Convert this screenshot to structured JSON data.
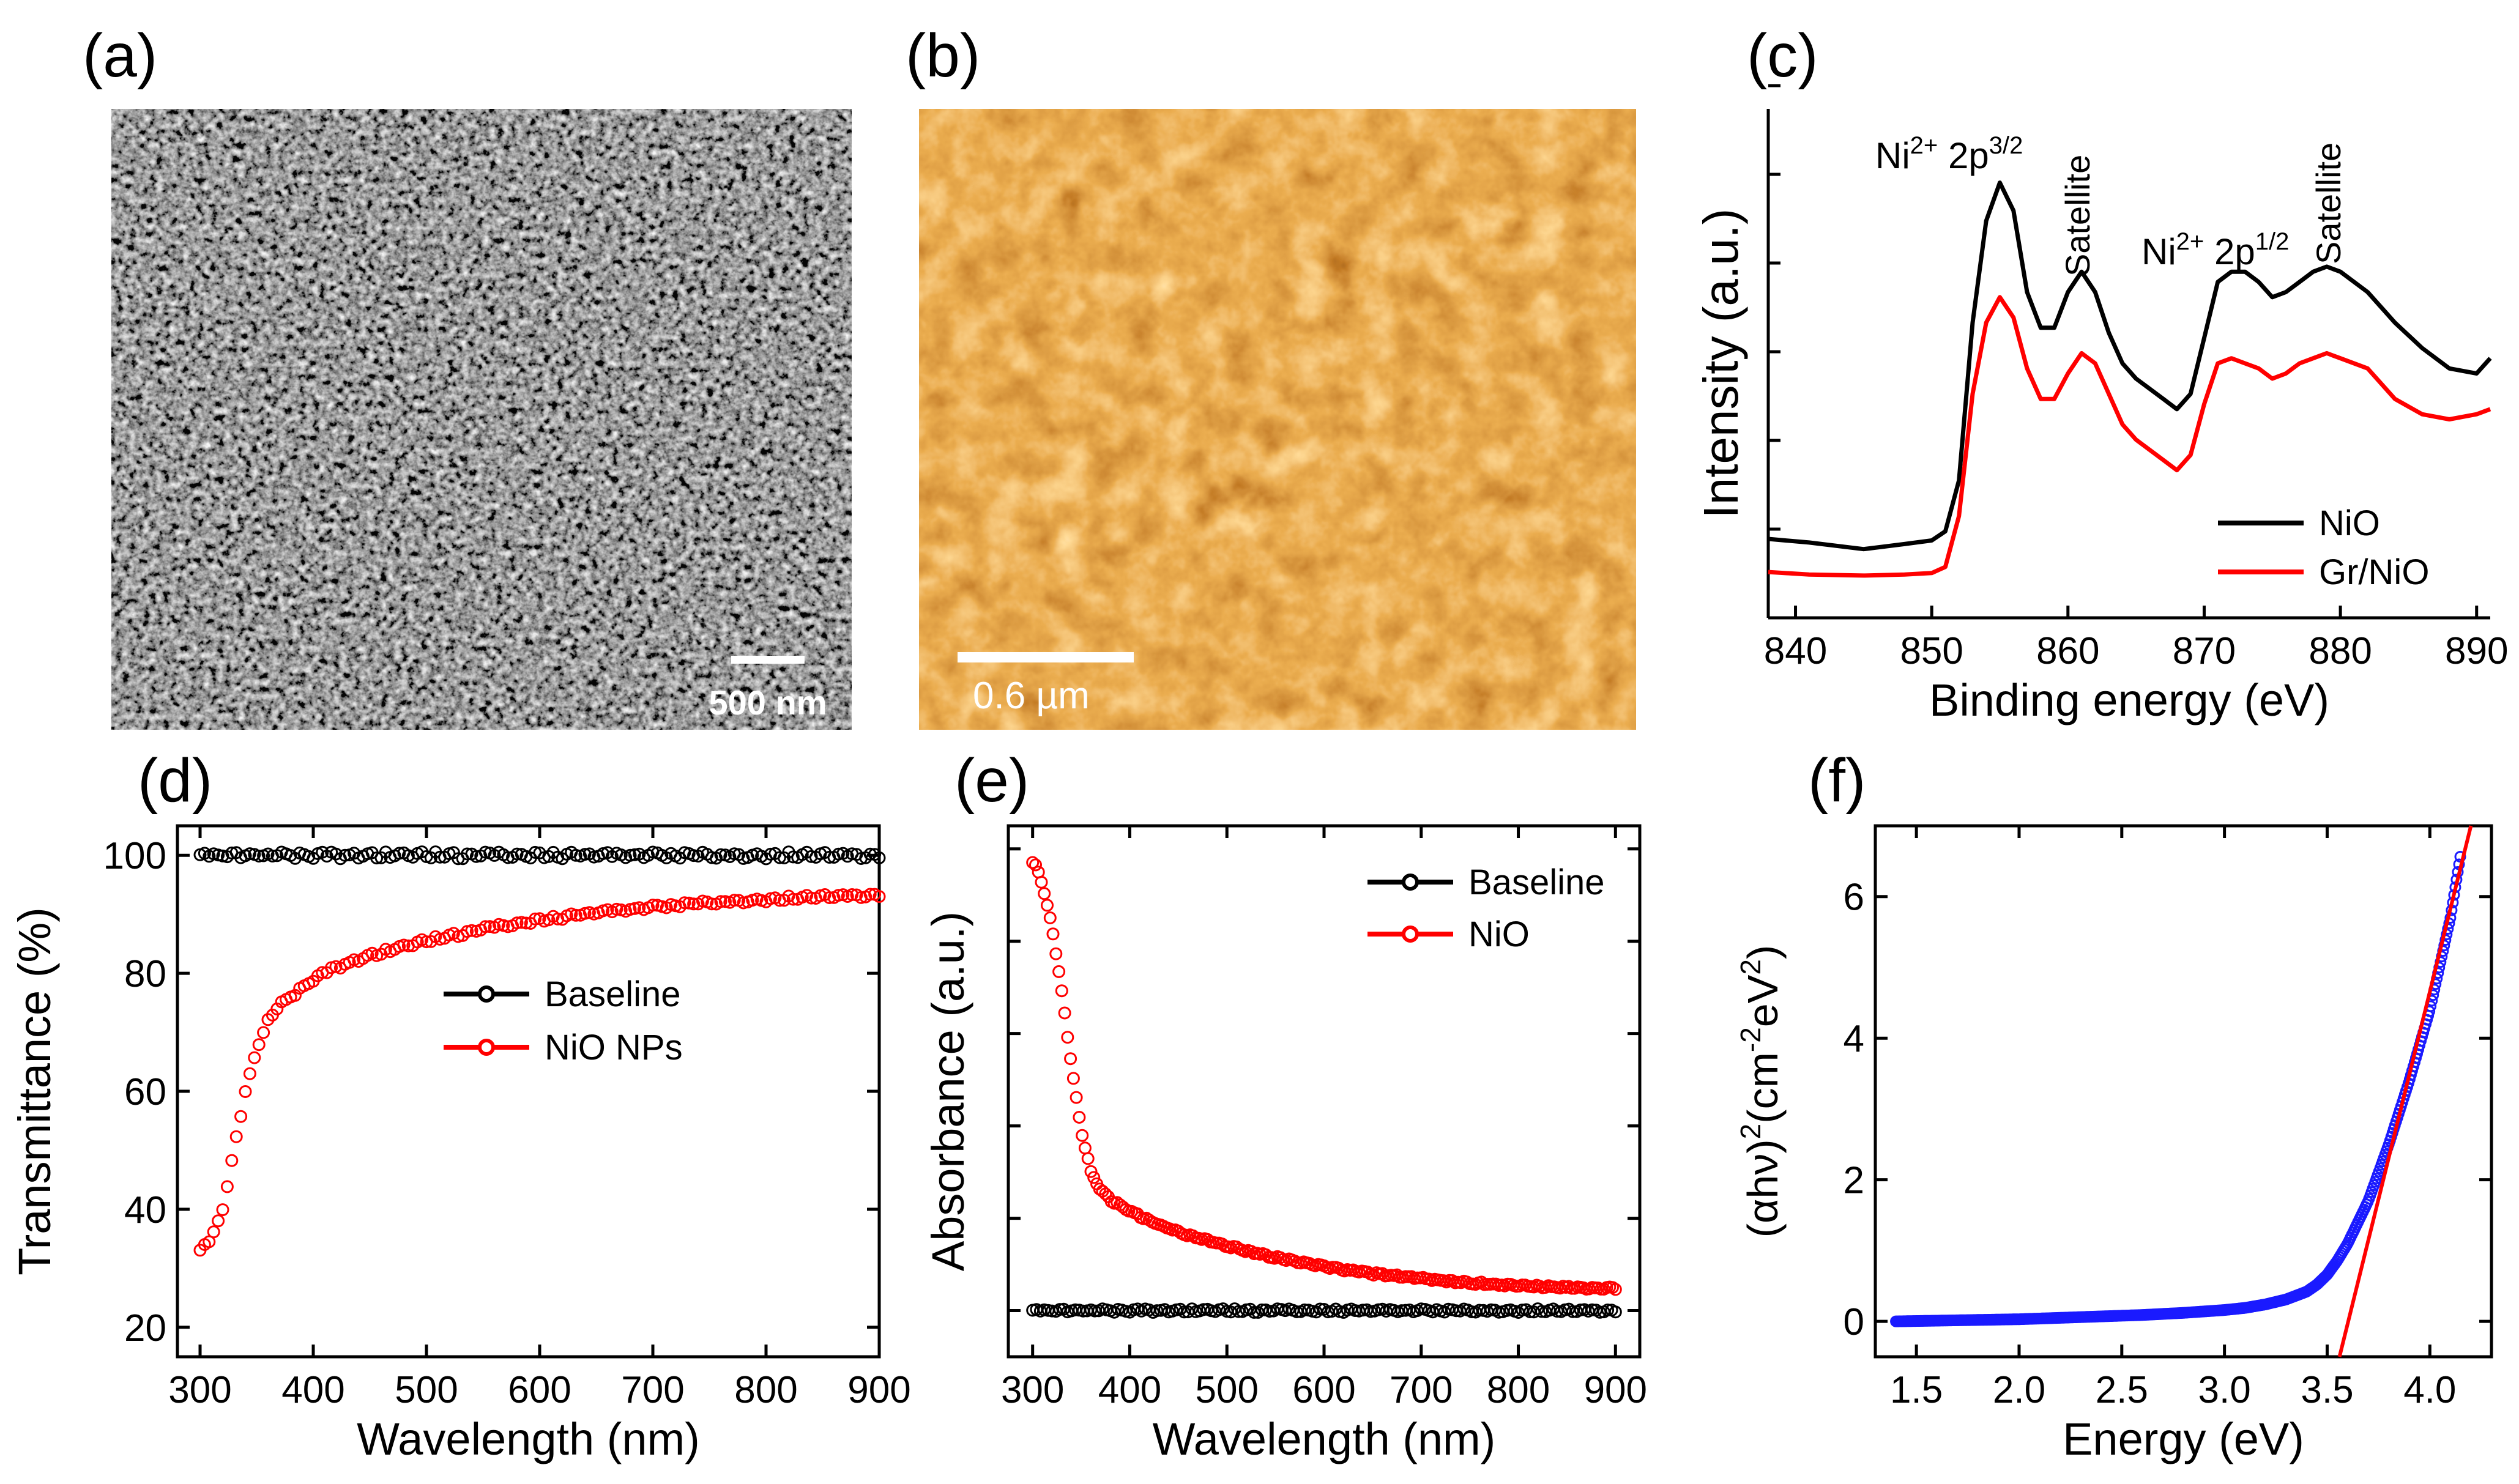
{
  "panels": {
    "a": {
      "label": "(a)",
      "scale_bar": "500 nm",
      "description": "SEM micrograph"
    },
    "b": {
      "label": "(b)",
      "scale_bar": "0.6 µm",
      "description": "AFM topography"
    },
    "c": {
      "label": "(c)"
    },
    "d": {
      "label": "(d)"
    },
    "e": {
      "label": "(e)"
    },
    "f": {
      "label": "(f)"
    }
  },
  "colors": {
    "black": "#000000",
    "red": "#ff0000",
    "blue": "#1a1aff",
    "afm_dark": "#3a0d00",
    "afm_mid": "#c4500e",
    "afm_light": "#ffe6b0"
  },
  "chart_data": [
    {
      "id": "c",
      "type": "line",
      "xlabel": "Binding energy (eV)",
      "ylabel": "Intensity (a.u.)",
      "xlim": [
        838,
        891
      ],
      "ylim": [
        0,
        1
      ],
      "xticks": [
        840,
        850,
        860,
        870,
        880,
        890
      ],
      "series": [
        {
          "name": "NiO",
          "color": "#000000",
          "x": [
            838,
            841,
            845,
            848,
            850,
            851,
            852,
            853,
            854,
            855,
            856,
            857,
            858,
            859,
            860,
            861,
            862,
            863,
            864,
            865,
            866,
            867,
            868,
            869,
            870,
            871,
            872,
            873,
            874,
            875,
            876,
            877,
            878,
            879,
            880,
            882,
            884,
            886,
            888,
            890,
            891
          ],
          "y": [
            0.155,
            0.148,
            0.135,
            0.145,
            0.152,
            0.17,
            0.27,
            0.58,
            0.78,
            0.855,
            0.8,
            0.64,
            0.57,
            0.57,
            0.64,
            0.68,
            0.64,
            0.56,
            0.5,
            0.47,
            0.45,
            0.43,
            0.41,
            0.44,
            0.55,
            0.66,
            0.68,
            0.68,
            0.66,
            0.63,
            0.64,
            0.66,
            0.68,
            0.69,
            0.68,
            0.64,
            0.58,
            0.53,
            0.49,
            0.48,
            0.51
          ]
        },
        {
          "name": "Gr/NiO",
          "color": "#ff0000",
          "x": [
            838,
            841,
            845,
            848,
            850,
            851,
            852,
            853,
            854,
            855,
            856,
            857,
            858,
            859,
            860,
            861,
            862,
            863,
            864,
            865,
            866,
            867,
            868,
            869,
            870,
            871,
            872,
            873,
            874,
            875,
            876,
            877,
            878,
            879,
            880,
            882,
            884,
            886,
            888,
            890,
            891
          ],
          "y": [
            0.09,
            0.085,
            0.083,
            0.085,
            0.088,
            0.1,
            0.2,
            0.44,
            0.58,
            0.63,
            0.59,
            0.49,
            0.43,
            0.43,
            0.48,
            0.52,
            0.5,
            0.44,
            0.38,
            0.35,
            0.33,
            0.31,
            0.29,
            0.32,
            0.42,
            0.5,
            0.51,
            0.5,
            0.49,
            0.47,
            0.48,
            0.5,
            0.51,
            0.52,
            0.51,
            0.49,
            0.43,
            0.4,
            0.39,
            0.4,
            0.41
          ]
        }
      ],
      "legend": [
        "NiO",
        "Gr/NiO"
      ],
      "annotations": [
        {
          "text": "Ni",
          "sup": "2+",
          "text2": " 2p",
          "sup2": "3/2"
        },
        {
          "text": "Satellite"
        },
        {
          "text": "Ni",
          "sup": "2+",
          "text2": " 2p",
          "sup2": "1/2"
        },
        {
          "text": "Satellite"
        }
      ]
    },
    {
      "id": "d",
      "type": "scatter",
      "xlabel": "Wavelength (nm)",
      "ylabel": "Transmittance (%)",
      "xlim": [
        280,
        900
      ],
      "ylim": [
        15,
        105
      ],
      "xticks": [
        300,
        400,
        500,
        600,
        700,
        800,
        900
      ],
      "yticks": [
        20,
        40,
        60,
        80,
        100
      ],
      "series": [
        {
          "name": "Baseline",
          "color": "#000000",
          "x": [
            300,
            900
          ],
          "y": [
            100,
            100
          ]
        },
        {
          "name": "NiO NPs",
          "color": "#ff0000",
          "x": [
            300,
            310,
            320,
            330,
            340,
            350,
            360,
            370,
            380,
            400,
            420,
            450,
            500,
            550,
            600,
            650,
            700,
            750,
            800,
            850,
            900
          ],
          "y": [
            33,
            35,
            40,
            50,
            60,
            67,
            72,
            74.5,
            76,
            79,
            81,
            83,
            85.5,
            87.5,
            89,
            90.3,
            91.2,
            92,
            92.5,
            93,
            93.3
          ]
        }
      ],
      "legend": [
        "Baseline",
        "NiO NPs"
      ]
    },
    {
      "id": "e",
      "type": "scatter",
      "xlabel": "Wavelength (nm)",
      "ylabel": "Absorbance (a.u.)",
      "xlim": [
        275,
        925
      ],
      "ylim": [
        -0.1,
        1.05
      ],
      "xticks": [
        300,
        400,
        500,
        600,
        700,
        800,
        900
      ],
      "series": [
        {
          "name": "Baseline",
          "color": "#000000",
          "x": [
            300,
            900
          ],
          "y": [
            0.0,
            0.0
          ]
        },
        {
          "name": "NiO",
          "color": "#ff0000",
          "x": [
            300,
            305,
            310,
            320,
            330,
            340,
            350,
            360,
            370,
            380,
            400,
            420,
            450,
            500,
            550,
            600,
            650,
            700,
            750,
            800,
            850,
            900
          ],
          "y": [
            0.97,
            0.96,
            0.92,
            0.83,
            0.69,
            0.53,
            0.39,
            0.3,
            0.26,
            0.24,
            0.215,
            0.195,
            0.17,
            0.14,
            0.115,
            0.095,
            0.08,
            0.07,
            0.06,
            0.055,
            0.05,
            0.048
          ]
        }
      ],
      "legend": [
        "Baseline",
        "NiO"
      ]
    },
    {
      "id": "f",
      "type": "scatter",
      "xlabel": "Energy (eV)",
      "ylabel": "(αhν)²(cm⁻²eV²)",
      "ylabel_parts": {
        "main": "(αhν)",
        "sup1": "2",
        "mid": "(cm",
        "sup2": "-2",
        "mid2": "eV",
        "sup3": "2",
        "end": ")"
      },
      "xlim": [
        1.3,
        4.3
      ],
      "ylim": [
        -0.5,
        7.0
      ],
      "xticks": [
        "1.5",
        "2.0",
        "2.5",
        "3.0",
        "3.5",
        "4.0"
      ],
      "yticks": [
        0,
        2,
        4,
        6
      ],
      "series": [
        {
          "name": "data",
          "color": "#1a1aff",
          "x": [
            1.4,
            1.6,
            1.8,
            2.0,
            2.2,
            2.4,
            2.6,
            2.8,
            3.0,
            3.1,
            3.2,
            3.3,
            3.4,
            3.45,
            3.5,
            3.55,
            3.6,
            3.65,
            3.7,
            3.8,
            3.9,
            4.0,
            4.1,
            4.15
          ],
          "y": [
            0.0,
            0.01,
            0.02,
            0.03,
            0.05,
            0.07,
            0.09,
            0.12,
            0.16,
            0.19,
            0.24,
            0.31,
            0.42,
            0.52,
            0.66,
            0.86,
            1.1,
            1.4,
            1.7,
            2.5,
            3.4,
            4.4,
            5.7,
            6.6
          ]
        },
        {
          "name": "fit",
          "color": "#ff0000",
          "x": [
            3.56,
            4.2
          ],
          "y": [
            -0.5,
            7.0
          ]
        }
      ]
    }
  ]
}
